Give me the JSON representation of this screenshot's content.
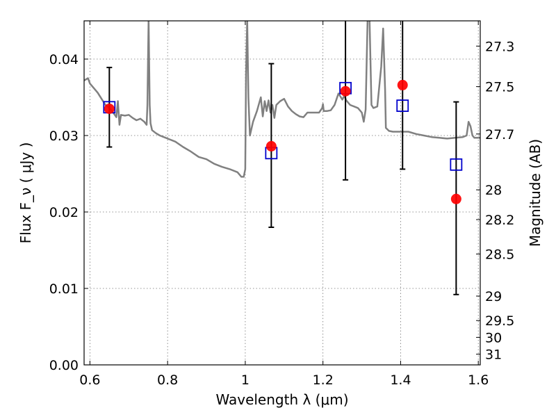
{
  "chart_data": {
    "type": "scatter",
    "xlabel": "Wavelength  λ (μm)",
    "ylabel": "Flux  F_ν  ( μJy )",
    "ylabel_right": "Magnitude (AB)",
    "xlim": [
      0.585,
      1.605
    ],
    "ylim": [
      0.0,
      0.045
    ],
    "grid": true,
    "x_ticks": [
      0.6,
      0.8,
      1.0,
      1.2,
      1.4,
      1.6
    ],
    "x_tick_labels": [
      "0.6",
      "0.8",
      "1",
      "1.2",
      "1.4",
      "1.6"
    ],
    "y_ticks": [
      0.0,
      0.01,
      0.02,
      0.03,
      0.04
    ],
    "y_tick_labels": [
      "0.00",
      "0.01",
      "0.02",
      "0.03",
      "0.04"
    ],
    "right_ticks": [
      {
        "label": "27.3",
        "flux": 0.0417
      },
      {
        "label": "27.5",
        "flux": 0.0364
      },
      {
        "label": "27.7",
        "flux": 0.0302
      },
      {
        "label": "28",
        "flux": 0.0229
      },
      {
        "label": "28.2",
        "flux": 0.019
      },
      {
        "label": "28.5",
        "flux": 0.0145
      },
      {
        "label": "29",
        "flux": 0.009
      },
      {
        "label": "29.5",
        "flux": 0.0058
      },
      {
        "label": "30",
        "flux": 0.0036
      },
      {
        "label": "31",
        "flux": 0.0014
      }
    ],
    "series": [
      {
        "kind": "line",
        "color": "#808080",
        "points": [
          [
            0.585,
            0.0372
          ],
          [
            0.595,
            0.0375
          ],
          [
            0.6,
            0.0368
          ],
          [
            0.61,
            0.0362
          ],
          [
            0.62,
            0.0356
          ],
          [
            0.63,
            0.0348
          ],
          [
            0.64,
            0.034
          ],
          [
            0.65,
            0.0336
          ],
          [
            0.66,
            0.033
          ],
          [
            0.668,
            0.0324
          ],
          [
            0.672,
            0.0345
          ],
          [
            0.676,
            0.0314
          ],
          [
            0.68,
            0.0327
          ],
          [
            0.69,
            0.0326
          ],
          [
            0.7,
            0.0327
          ],
          [
            0.71,
            0.0323
          ],
          [
            0.72,
            0.032
          ],
          [
            0.73,
            0.0322
          ],
          [
            0.74,
            0.0318
          ],
          [
            0.746,
            0.0314
          ],
          [
            0.748,
            0.034
          ],
          [
            0.751,
            0.047
          ],
          [
            0.754,
            0.034
          ],
          [
            0.756,
            0.0316
          ],
          [
            0.76,
            0.0307
          ],
          [
            0.77,
            0.0303
          ],
          [
            0.78,
            0.03
          ],
          [
            0.79,
            0.0298
          ],
          [
            0.8,
            0.0296
          ],
          [
            0.82,
            0.0292
          ],
          [
            0.84,
            0.0285
          ],
          [
            0.86,
            0.0279
          ],
          [
            0.88,
            0.0272
          ],
          [
            0.9,
            0.0269
          ],
          [
            0.92,
            0.0263
          ],
          [
            0.94,
            0.0259
          ],
          [
            0.96,
            0.0256
          ],
          [
            0.98,
            0.0252
          ],
          [
            0.99,
            0.0246
          ],
          [
            0.996,
            0.0246
          ],
          [
            1.0,
            0.0256
          ],
          [
            1.002,
            0.038
          ],
          [
            1.005,
            0.047
          ],
          [
            1.008,
            0.035
          ],
          [
            1.012,
            0.03
          ],
          [
            1.02,
            0.0318
          ],
          [
            1.03,
            0.0332
          ],
          [
            1.04,
            0.035
          ],
          [
            1.045,
            0.0325
          ],
          [
            1.05,
            0.0345
          ],
          [
            1.055,
            0.0332
          ],
          [
            1.06,
            0.0346
          ],
          [
            1.065,
            0.033
          ],
          [
            1.07,
            0.034
          ],
          [
            1.075,
            0.0323
          ],
          [
            1.08,
            0.034
          ],
          [
            1.09,
            0.0345
          ],
          [
            1.1,
            0.0348
          ],
          [
            1.11,
            0.0338
          ],
          [
            1.12,
            0.0332
          ],
          [
            1.13,
            0.0328
          ],
          [
            1.14,
            0.0325
          ],
          [
            1.15,
            0.0324
          ],
          [
            1.16,
            0.033
          ],
          [
            1.17,
            0.033
          ],
          [
            1.18,
            0.033
          ],
          [
            1.19,
            0.033
          ],
          [
            1.198,
            0.0336
          ],
          [
            1.2,
            0.0341
          ],
          [
            1.202,
            0.0332
          ],
          [
            1.21,
            0.0332
          ],
          [
            1.22,
            0.0333
          ],
          [
            1.23,
            0.034
          ],
          [
            1.24,
            0.0355
          ],
          [
            1.25,
            0.0347
          ],
          [
            1.255,
            0.0352
          ],
          [
            1.26,
            0.0346
          ],
          [
            1.27,
            0.034
          ],
          [
            1.28,
            0.0338
          ],
          [
            1.29,
            0.0336
          ],
          [
            1.3,
            0.033
          ],
          [
            1.305,
            0.0318
          ],
          [
            1.31,
            0.0334
          ],
          [
            1.315,
            0.047
          ],
          [
            1.32,
            0.047
          ],
          [
            1.325,
            0.034
          ],
          [
            1.33,
            0.0336
          ],
          [
            1.34,
            0.0338
          ],
          [
            1.35,
            0.039
          ],
          [
            1.355,
            0.044
          ],
          [
            1.36,
            0.036
          ],
          [
            1.362,
            0.031
          ],
          [
            1.37,
            0.0306
          ],
          [
            1.38,
            0.0305
          ],
          [
            1.4,
            0.0305
          ],
          [
            1.42,
            0.0305
          ],
          [
            1.44,
            0.0302
          ],
          [
            1.46,
            0.03
          ],
          [
            1.48,
            0.0298
          ],
          [
            1.5,
            0.0297
          ],
          [
            1.52,
            0.0296
          ],
          [
            1.54,
            0.0297
          ],
          [
            1.56,
            0.0298
          ],
          [
            1.57,
            0.03
          ],
          [
            1.575,
            0.0318
          ],
          [
            1.58,
            0.0312
          ],
          [
            1.585,
            0.03
          ],
          [
            1.59,
            0.0297
          ],
          [
            1.6,
            0.0297
          ],
          [
            1.605,
            0.0297
          ]
        ]
      },
      {
        "kind": "errorbar",
        "color": "#000000",
        "points": [
          {
            "x": 0.65,
            "y": 0.0337,
            "ylo": 0.0285,
            "yhi": 0.0389
          },
          {
            "x": 1.067,
            "y": 0.0287,
            "ylo": 0.018,
            "yhi": 0.0394
          },
          {
            "x": 1.258,
            "y": 0.0358,
            "ylo": 0.0242,
            "yhi": 0.047
          },
          {
            "x": 1.405,
            "y": 0.0366,
            "ylo": 0.0256,
            "yhi": 0.047
          },
          {
            "x": 1.543,
            "y": 0.0218,
            "ylo": 0.0092,
            "yhi": 0.0344
          }
        ]
      },
      {
        "kind": "scatter",
        "marker": "square",
        "color": "#0000cc",
        "x": [
          0.65,
          1.067,
          1.258,
          1.405,
          1.543
        ],
        "y": [
          0.0337,
          0.0277,
          0.0362,
          0.0339,
          0.0262
        ]
      },
      {
        "kind": "scatter",
        "marker": "circle",
        "color": "#ff0000",
        "x": [
          0.65,
          1.067,
          1.258,
          1.405,
          1.543
        ],
        "y": [
          0.0335,
          0.0286,
          0.0358,
          0.0366,
          0.0217
        ]
      }
    ]
  }
}
